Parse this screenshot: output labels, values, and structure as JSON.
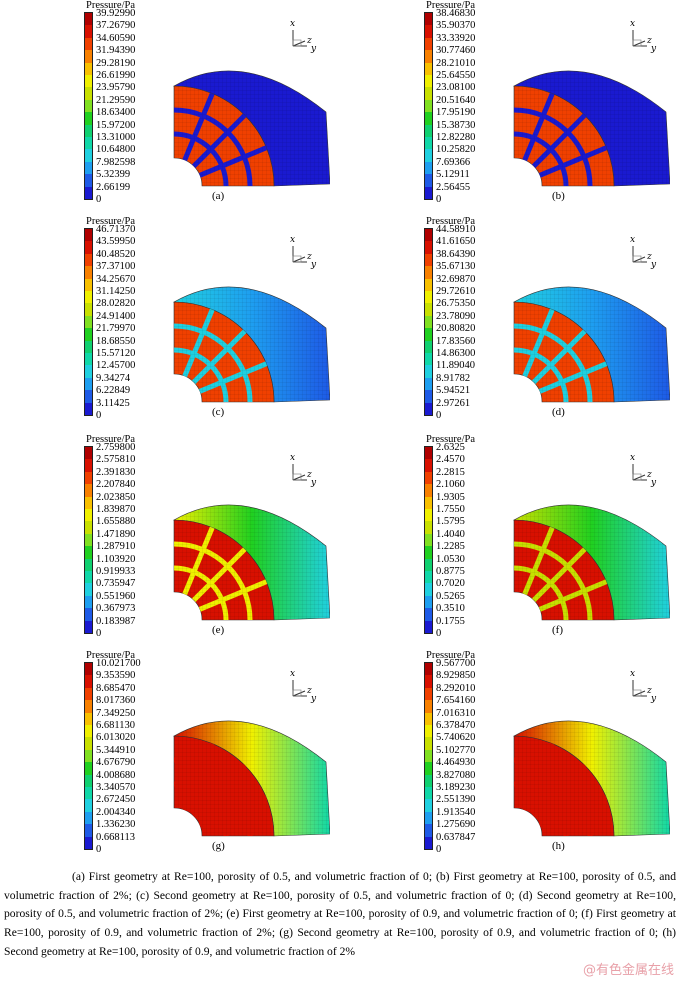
{
  "colorbar_title": "Pressure/Pa",
  "axis_labels": {
    "x": "x",
    "z": "z",
    "y": "y"
  },
  "palette": [
    "#1a1ad0",
    "#1e5ae6",
    "#1e9ef0",
    "#20d0e0",
    "#10d8a8",
    "#10d070",
    "#20d020",
    "#80e020",
    "#c8e000",
    "#f0f000",
    "#f8c000",
    "#f88000",
    "#f04000",
    "#d81000",
    "#b00000"
  ],
  "panels": [
    {
      "label": "(a)",
      "values": [
        "39.92990",
        "37.26790",
        "34.60590",
        "31.94390",
        "29.28190",
        "26.61990",
        "23.95790",
        "21.29590",
        "18.63400",
        "15.97200",
        "13.31000",
        "10.64800",
        "7.982598",
        "5.32399",
        "2.66199",
        "0"
      ],
      "surface": [
        0.02,
        0.02,
        0.02
      ],
      "core": [
        0.75,
        0.85
      ]
    },
    {
      "label": "(b)",
      "values": [
        "38.46830",
        "35.90370",
        "33.33920",
        "30.77460",
        "28.21010",
        "25.64550",
        "23.08100",
        "20.51640",
        "17.95190",
        "15.38730",
        "12.82280",
        "10.25820",
        "7.69366",
        "5.12911",
        "2.56455",
        "0"
      ],
      "surface": [
        0.02,
        0.02,
        0.02
      ],
      "core": [
        0.75,
        0.85
      ]
    },
    {
      "label": "(c)",
      "values": [
        "46.71370",
        "43.59950",
        "40.48520",
        "37.37100",
        "34.25670",
        "31.14250",
        "28.02820",
        "24.91400",
        "21.79970",
        "18.68550",
        "15.57120",
        "12.45700",
        "9.34274",
        "6.22849",
        "3.11425",
        "0"
      ],
      "surface": [
        0.22,
        0.16,
        0.05
      ],
      "core": [
        0.75,
        0.85
      ]
    },
    {
      "label": "(d)",
      "values": [
        "44.58910",
        "41.61650",
        "38.64390",
        "35.67130",
        "32.69870",
        "29.72610",
        "26.75350",
        "23.78090",
        "20.80820",
        "17.83560",
        "14.86300",
        "11.89040",
        "8.91782",
        "5.94521",
        "2.97261",
        "0"
      ],
      "surface": [
        0.2,
        0.14,
        0.05
      ],
      "core": [
        0.75,
        0.85
      ]
    },
    {
      "label": "(e)",
      "values": [
        "2.759800",
        "2.575810",
        "2.391830",
        "2.207840",
        "2.023850",
        "1.839870",
        "1.655880",
        "1.471890",
        "1.287910",
        "1.103920",
        "0.919933",
        "0.735947",
        "0.551960",
        "0.367973",
        "0.183987",
        "0"
      ],
      "surface": [
        0.62,
        0.45,
        0.22
      ],
      "core": [
        0.8,
        0.95
      ]
    },
    {
      "label": "(f)",
      "values": [
        "2.6325",
        "2.4570",
        "2.2815",
        "2.1060",
        "1.9305",
        "1.7550",
        "1.5795",
        "1.4040",
        "1.2285",
        "1.0530",
        "0.8775",
        "0.7020",
        "0.5265",
        "0.3510",
        "0.1755",
        "0"
      ],
      "surface": [
        0.6,
        0.43,
        0.2
      ],
      "core": [
        0.8,
        0.95
      ]
    },
    {
      "label": "(g)",
      "values": [
        "10.021700",
        "9.353590",
        "8.685470",
        "8.017360",
        "7.349250",
        "6.681130",
        "6.013020",
        "5.344910",
        "4.676790",
        "4.008680",
        "3.340570",
        "2.672450",
        "2.004340",
        "1.336230",
        "0.668113",
        "0"
      ],
      "surface": [
        0.93,
        0.62,
        0.25
      ],
      "core": [
        0.95,
        0.95
      ]
    },
    {
      "label": "(h)",
      "values": [
        "9.567700",
        "8.929850",
        "8.292010",
        "7.654160",
        "7.016310",
        "6.378470",
        "5.740620",
        "5.102770",
        "4.464930",
        "3.827080",
        "3.189230",
        "2.551390",
        "1.913540",
        "1.275690",
        "0.637847",
        "0"
      ],
      "surface": [
        0.93,
        0.62,
        0.25
      ],
      "core": [
        0.95,
        0.95
      ]
    }
  ],
  "caption": "(a) First geometry at Re=100, porosity of 0.5, and volumetric fraction of 0; (b) First geometry at Re=100, porosity of 0.5, and volumetric fraction of 2%; (c) Second geometry at Re=100, porosity of 0.5, and volumetric fraction of 0; (d) Second geometry at Re=100, porosity of 0.5, and volumetric fraction of 2%; (e) First geometry at Re=100, porosity of 0.9, and volumetric fraction of 0; (f) First geometry at Re=100, porosity of 0.9, and volumetric fraction of 2%; (g) Second geometry at Re=100, porosity of 0.9, and volumetric fraction of 0; (h) Second geometry at Re=100, porosity of 0.9, and volumetric fraction of 2%",
  "watermark": "@有色金属在线"
}
